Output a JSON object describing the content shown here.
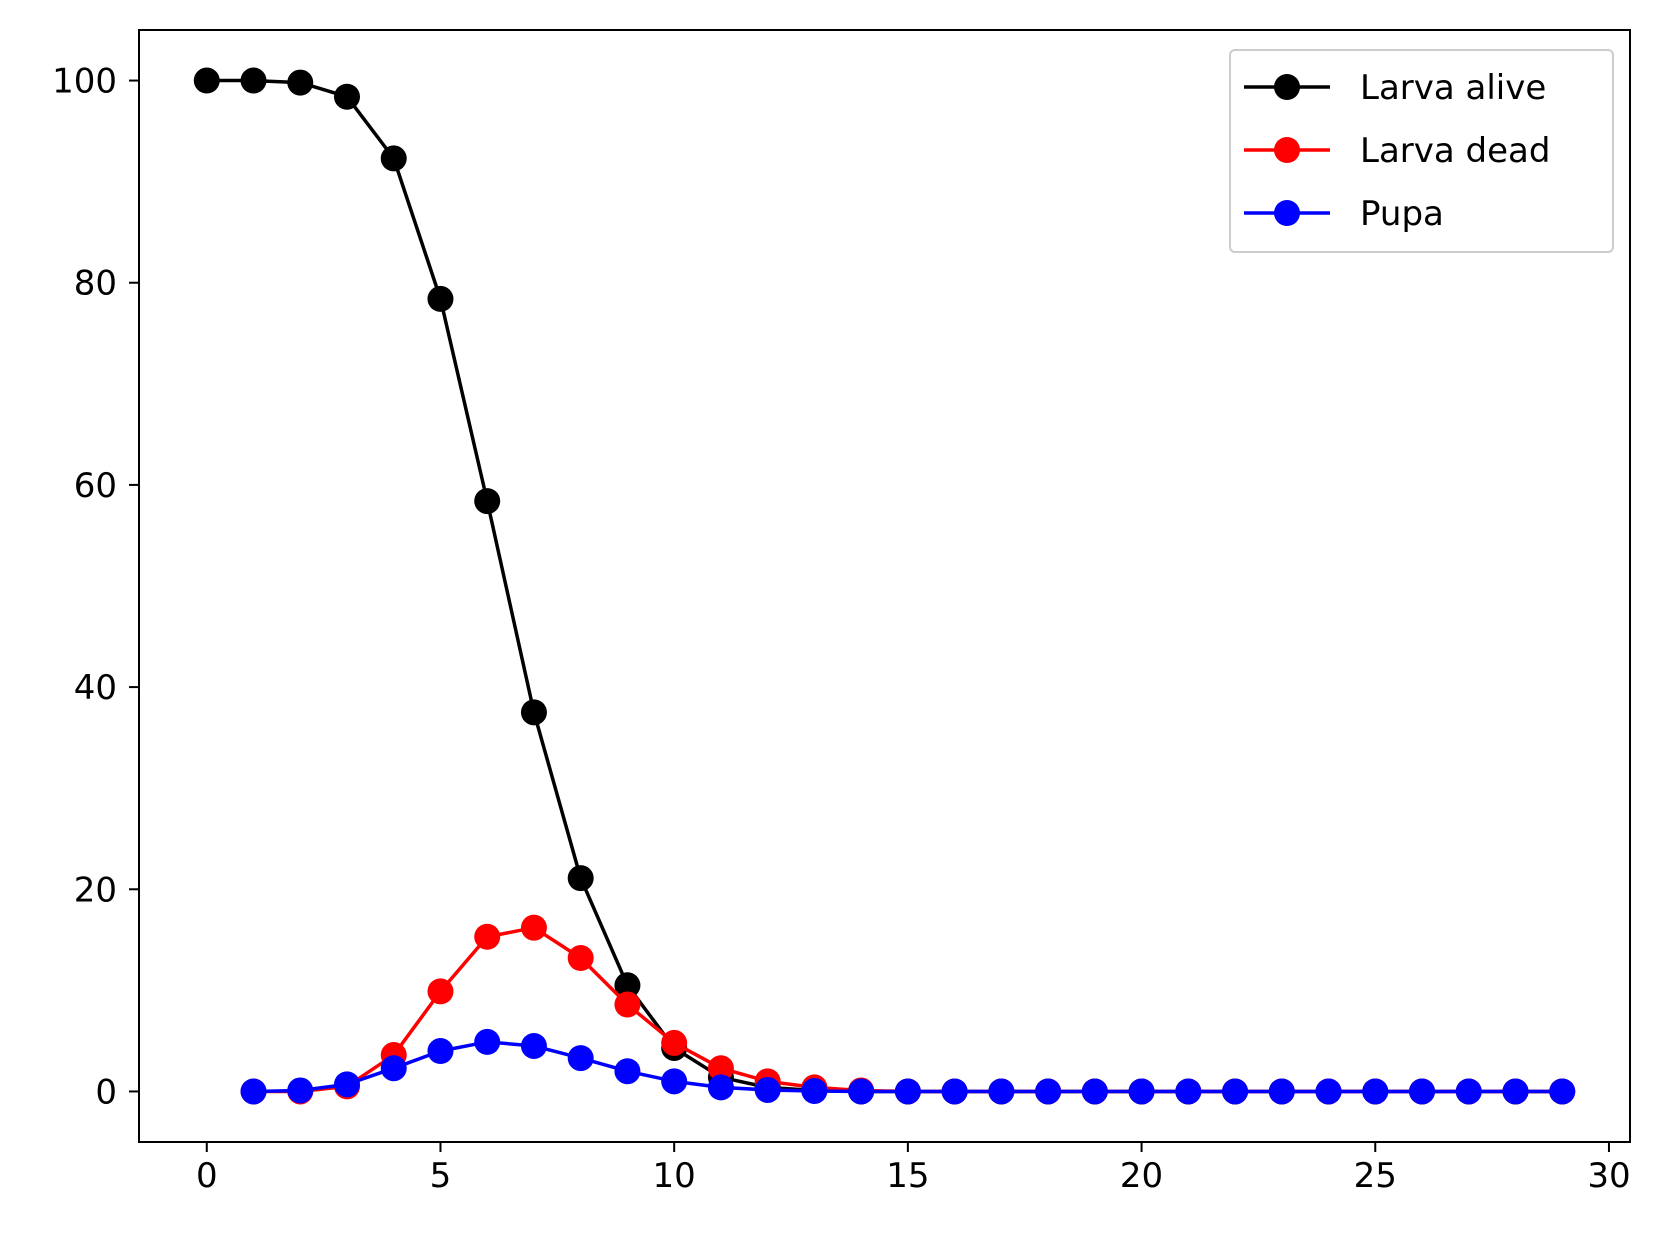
{
  "chart_data": {
    "type": "line",
    "title": "",
    "xlabel": "",
    "ylabel": "",
    "xlim": [
      -1.45,
      30.45
    ],
    "ylim": [
      -5,
      105
    ],
    "xticks": [
      0,
      5,
      10,
      15,
      20,
      25,
      30
    ],
    "yticks": [
      0,
      20,
      40,
      60,
      80,
      100
    ],
    "xtick_labels": [
      "0",
      "5",
      "10",
      "15",
      "20",
      "25",
      "30"
    ],
    "ytick_labels": [
      "0",
      "20",
      "40",
      "60",
      "80",
      "100"
    ],
    "grid": false,
    "legend_position": "top-right",
    "series": [
      {
        "name": "Larva alive",
        "color": "#000000",
        "marker": "circle",
        "x": [
          0,
          1,
          2,
          3,
          4,
          5,
          6,
          7,
          8,
          9,
          10,
          11,
          12,
          13,
          14,
          15,
          16,
          17,
          18,
          19,
          20,
          21,
          22,
          23,
          24,
          25,
          26,
          27,
          28,
          29
        ],
        "y": [
          100,
          100,
          99.8,
          98.4,
          92.3,
          78.4,
          58.4,
          37.5,
          21.1,
          10.5,
          4.3,
          1.4,
          0.4,
          0.1,
          0,
          0,
          0,
          0,
          0,
          0,
          0,
          0,
          0,
          0,
          0,
          0,
          0,
          0,
          0,
          0
        ]
      },
      {
        "name": "Larva dead",
        "color": "#ff0000",
        "marker": "circle",
        "x": [
          1,
          2,
          3,
          4,
          5,
          6,
          7,
          8,
          9,
          10,
          11,
          12,
          13,
          14,
          15,
          16,
          17,
          18,
          19,
          20,
          21,
          22,
          23,
          24,
          25,
          26,
          27,
          28,
          29
        ],
        "y": [
          0,
          0,
          0.5,
          3.6,
          9.9,
          15.3,
          16.2,
          13.2,
          8.6,
          4.8,
          2.3,
          1.0,
          0.4,
          0.1,
          0,
          0,
          0,
          0,
          0,
          0,
          0,
          0,
          0,
          0,
          0,
          0,
          0,
          0,
          0
        ]
      },
      {
        "name": "Pupa",
        "color": "#0000ff",
        "marker": "circle",
        "x": [
          1,
          2,
          3,
          4,
          5,
          6,
          7,
          8,
          9,
          10,
          11,
          12,
          13,
          14,
          15,
          16,
          17,
          18,
          19,
          20,
          21,
          22,
          23,
          24,
          25,
          26,
          27,
          28,
          29
        ],
        "y": [
          0,
          0.1,
          0.7,
          2.3,
          4.0,
          4.9,
          4.5,
          3.3,
          2.0,
          1.0,
          0.4,
          0.15,
          0.05,
          0,
          0,
          0,
          0,
          0,
          0,
          0,
          0,
          0,
          0,
          0,
          0,
          0,
          0,
          0,
          0
        ]
      }
    ]
  }
}
